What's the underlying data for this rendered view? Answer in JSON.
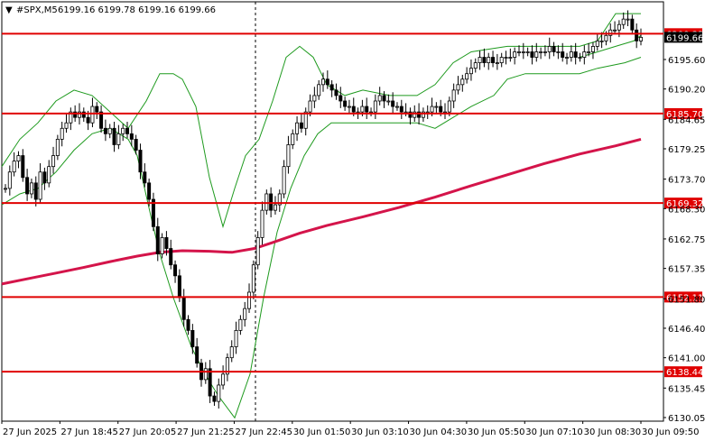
{
  "header": {
    "arrow": "▼",
    "symbol": "#SPX,M5",
    "ohlc": "6199.16 6199.78 6199.16 6199.66"
  },
  "colors": {
    "level_line": "#e00000",
    "ma_line": "#d4144a",
    "band_line": "#1e9a1e",
    "candle": "#000000",
    "frame": "#000000",
    "price_box": "#000000"
  },
  "chart_data": {
    "type": "candlestick",
    "title": "#SPX,M5",
    "ylim": [
      6130.05,
      6205.5
    ],
    "y_ticks": [
      "6195.60",
      "6190.20",
      "6184.65",
      "6179.25",
      "6173.70",
      "6168.30",
      "6162.75",
      "6157.35",
      "6151.80",
      "6146.40",
      "6141.00",
      "6135.45",
      "6130.05"
    ],
    "x_ticks": [
      "27 Jun 2025",
      "27 Jun 18:45",
      "27 Jun 20:05",
      "27 Jun 21:25",
      "27 Jun 22:45",
      "30 Jun 01:50",
      "30 Jun 03:10",
      "30 Jun 04:30",
      "30 Jun 05:50",
      "30 Jun 07:10",
      "30 Jun 08:30",
      "30 Jun 09:50"
    ],
    "levels": [
      {
        "label": "6200.33",
        "value": 6200.33
      },
      {
        "label": "6185.70",
        "value": 6185.7
      },
      {
        "label": "6169.32",
        "value": 6169.32
      },
      {
        "label": "6152.11",
        "value": 6152.11
      },
      {
        "label": "6138.44",
        "value": 6138.44
      }
    ],
    "current_price": "6199.66",
    "ma_path": [
      [
        0,
        6154.5
      ],
      [
        30,
        6155.5
      ],
      [
        60,
        6156.5
      ],
      [
        90,
        6157.5
      ],
      [
        120,
        6158.6
      ],
      [
        150,
        6159.6
      ],
      [
        175,
        6160.3
      ],
      [
        200,
        6160.6
      ],
      [
        230,
        6160.5
      ],
      [
        255,
        6160.3
      ],
      [
        280,
        6161.0
      ],
      [
        300,
        6162.1
      ],
      [
        330,
        6163.8
      ],
      [
        360,
        6165.2
      ],
      [
        400,
        6166.8
      ],
      [
        440,
        6168.5
      ],
      [
        480,
        6170.4
      ],
      [
        520,
        6172.5
      ],
      [
        560,
        6174.5
      ],
      [
        600,
        6176.5
      ],
      [
        640,
        6178.3
      ],
      [
        680,
        6179.8
      ],
      [
        708,
        6181.0
      ]
    ],
    "band_upper": [
      [
        0,
        6176
      ],
      [
        20,
        6181
      ],
      [
        40,
        6184
      ],
      [
        60,
        6188
      ],
      [
        80,
        6190
      ],
      [
        100,
        6189
      ],
      [
        120,
        6186
      ],
      [
        140,
        6183
      ],
      [
        160,
        6188
      ],
      [
        175,
        6193
      ],
      [
        190,
        6193
      ],
      [
        200,
        6192
      ],
      [
        215,
        6187
      ],
      [
        230,
        6174
      ],
      [
        245,
        6165
      ],
      [
        258,
        6172
      ],
      [
        270,
        6178
      ],
      [
        285,
        6181
      ],
      [
        300,
        6188
      ],
      [
        315,
        6196
      ],
      [
        330,
        6198
      ],
      [
        345,
        6196
      ],
      [
        360,
        6191
      ],
      [
        380,
        6189
      ],
      [
        400,
        6190
      ],
      [
        430,
        6189
      ],
      [
        460,
        6189
      ],
      [
        480,
        6191
      ],
      [
        500,
        6195
      ],
      [
        520,
        6197
      ],
      [
        560,
        6198
      ],
      [
        600,
        6198
      ],
      [
        640,
        6198
      ],
      [
        660,
        6199
      ],
      [
        680,
        6204
      ],
      [
        708,
        6204
      ]
    ],
    "band_lower": [
      [
        0,
        6169
      ],
      [
        20,
        6171
      ],
      [
        40,
        6172
      ],
      [
        60,
        6175
      ],
      [
        80,
        6179
      ],
      [
        100,
        6182
      ],
      [
        120,
        6183
      ],
      [
        140,
        6181
      ],
      [
        150,
        6178
      ],
      [
        165,
        6167
      ],
      [
        175,
        6160
      ],
      [
        190,
        6152
      ],
      [
        210,
        6143
      ],
      [
        225,
        6138
      ],
      [
        240,
        6134
      ],
      [
        258,
        6130
      ],
      [
        275,
        6138
      ],
      [
        290,
        6152
      ],
      [
        305,
        6164
      ],
      [
        320,
        6172
      ],
      [
        335,
        6178
      ],
      [
        350,
        6182
      ],
      [
        365,
        6184
      ],
      [
        390,
        6184
      ],
      [
        420,
        6184
      ],
      [
        460,
        6184
      ],
      [
        480,
        6183
      ],
      [
        500,
        6185
      ],
      [
        520,
        6187
      ],
      [
        545,
        6189
      ],
      [
        560,
        6192
      ],
      [
        580,
        6193
      ],
      [
        600,
        6193
      ],
      [
        640,
        6193
      ],
      [
        660,
        6194
      ],
      [
        690,
        6195
      ],
      [
        708,
        6196
      ]
    ],
    "band_mid": [
      [
        640,
        6196
      ],
      [
        660,
        6197
      ],
      [
        680,
        6198
      ],
      [
        700,
        6199
      ],
      [
        708,
        6200
      ]
    ],
    "candles_close": [
      6172,
      6175,
      6177,
      6178,
      6174,
      6171,
      6173,
      6170,
      6175,
      6173,
      6176,
      6178,
      6181,
      6183,
      6184,
      6186,
      6185,
      6186,
      6185,
      6184,
      6187,
      6186,
      6183,
      6182,
      6183,
      6180,
      6182,
      6183,
      6182,
      6181,
      6179,
      6175,
      6173,
      6170,
      6165,
      6160,
      6163,
      6161,
      6158,
      6156,
      6152,
      6148,
      6146,
      6143,
      6140,
      6137,
      6139,
      6134,
      6133,
      6136,
      6138,
      6141,
      6143,
      6146,
      6148,
      6150,
      6153,
      6158,
      6163,
      6168,
      6171,
      6168,
      6169,
      6171,
      6176,
      6180,
      6182,
      6184,
      6183,
      6186,
      6188,
      6189,
      6191,
      6192,
      6191,
      6190,
      6189,
      6188,
      6187,
      6187,
      6186,
      6186,
      6187,
      6186,
      6186,
      6188,
      6189,
      6188,
      6188,
      6187,
      6187,
      6186,
      6186,
      6185,
      6186,
      6185,
      6186,
      6186,
      6187,
      6187,
      6186,
      6186,
      6188,
      6190,
      6191,
      6192,
      6193,
      6194,
      6195,
      6196,
      6195,
      6196,
      6195,
      6195,
      6196,
      6196,
      6196,
      6197,
      6197,
      6197,
      6197,
      6196,
      6197,
      6197,
      6197,
      6198,
      6197,
      6197,
      6196,
      6196,
      6197,
      6196,
      6196,
      6197,
      6197,
      6198,
      6199,
      6199,
      6200,
      6201,
      6201,
      6202,
      6203,
      6203,
      6201,
      6199,
      6199.66
    ]
  }
}
